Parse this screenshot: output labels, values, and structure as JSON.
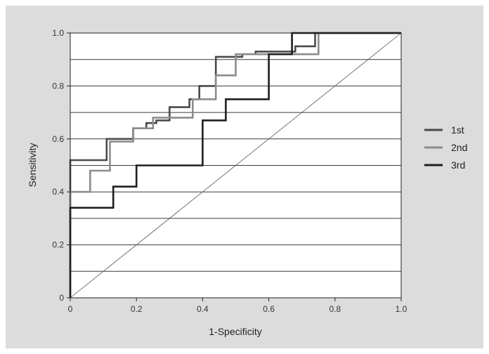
{
  "chart_data": {
    "type": "line",
    "xlabel": "1-Specificity",
    "ylabel": "Sensitivity",
    "xlim": [
      0,
      1
    ],
    "ylim": [
      0,
      1
    ],
    "grid": "horizontal",
    "legend_position": "right",
    "x_ticks": [
      {
        "value": 0,
        "label": "0"
      },
      {
        "value": 0.2,
        "label": "0.2"
      },
      {
        "value": 0.4,
        "label": "0.4"
      },
      {
        "value": 0.6,
        "label": "0.6"
      },
      {
        "value": 0.8,
        "label": "0.8"
      },
      {
        "value": 1.0,
        "label": "1.0"
      }
    ],
    "y_ticks": [
      {
        "value": 0,
        "label": "0"
      },
      {
        "value": 0.2,
        "label": "0.2"
      },
      {
        "value": 0.4,
        "label": "0.4"
      },
      {
        "value": 0.6,
        "label": "0.6"
      },
      {
        "value": 0.8,
        "label": "0.8"
      },
      {
        "value": 1.0,
        "label": "1.0"
      }
    ],
    "gridlines_y": [
      0.1,
      0.2,
      0.3,
      0.4,
      0.5,
      0.6,
      0.7,
      0.8,
      0.9
    ],
    "reference_line": {
      "x": [
        0,
        1
      ],
      "y": [
        0,
        1
      ],
      "color": "#555555"
    },
    "series": [
      {
        "name": "1st",
        "color": "#4a4a4a",
        "points": [
          [
            0,
            0
          ],
          [
            0,
            0.52
          ],
          [
            0.11,
            0.52
          ],
          [
            0.11,
            0.6
          ],
          [
            0.19,
            0.6
          ],
          [
            0.19,
            0.64
          ],
          [
            0.23,
            0.64
          ],
          [
            0.23,
            0.66
          ],
          [
            0.26,
            0.66
          ],
          [
            0.26,
            0.67
          ],
          [
            0.3,
            0.67
          ],
          [
            0.3,
            0.72
          ],
          [
            0.36,
            0.72
          ],
          [
            0.36,
            0.75
          ],
          [
            0.39,
            0.75
          ],
          [
            0.39,
            0.8
          ],
          [
            0.44,
            0.8
          ],
          [
            0.44,
            0.91
          ],
          [
            0.52,
            0.91
          ],
          [
            0.52,
            0.92
          ],
          [
            0.56,
            0.92
          ],
          [
            0.56,
            0.93
          ],
          [
            0.68,
            0.93
          ],
          [
            0.68,
            0.95
          ],
          [
            0.74,
            0.95
          ],
          [
            0.74,
            1.0
          ],
          [
            1.0,
            1.0
          ]
        ]
      },
      {
        "name": "2nd",
        "color": "#8c8c8c",
        "points": [
          [
            0,
            0
          ],
          [
            0,
            0.4
          ],
          [
            0.06,
            0.4
          ],
          [
            0.06,
            0.48
          ],
          [
            0.12,
            0.48
          ],
          [
            0.12,
            0.59
          ],
          [
            0.19,
            0.59
          ],
          [
            0.19,
            0.64
          ],
          [
            0.25,
            0.64
          ],
          [
            0.25,
            0.68
          ],
          [
            0.37,
            0.68
          ],
          [
            0.37,
            0.75
          ],
          [
            0.44,
            0.75
          ],
          [
            0.44,
            0.84
          ],
          [
            0.5,
            0.84
          ],
          [
            0.5,
            0.92
          ],
          [
            0.75,
            0.92
          ],
          [
            0.75,
            1.0
          ],
          [
            1.0,
            1.0
          ]
        ]
      },
      {
        "name": "3rd",
        "color": "#1e1e1e",
        "points": [
          [
            0,
            0
          ],
          [
            0,
            0.34
          ],
          [
            0.13,
            0.34
          ],
          [
            0.13,
            0.42
          ],
          [
            0.2,
            0.42
          ],
          [
            0.2,
            0.5
          ],
          [
            0.4,
            0.5
          ],
          [
            0.4,
            0.67
          ],
          [
            0.47,
            0.67
          ],
          [
            0.47,
            0.75
          ],
          [
            0.6,
            0.75
          ],
          [
            0.6,
            0.92
          ],
          [
            0.67,
            0.92
          ],
          [
            0.67,
            1.0
          ],
          [
            1.0,
            1.0
          ]
        ]
      }
    ]
  }
}
